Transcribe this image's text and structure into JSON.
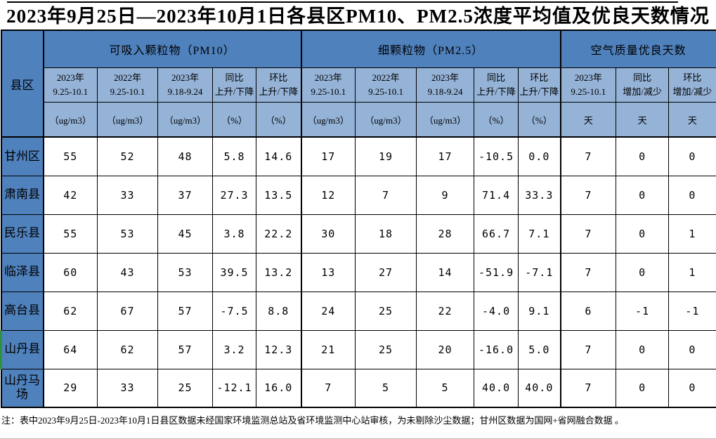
{
  "title": "2023年9月25日—2023年10月1日各县区PM10、PM2.5浓度平均值及优良天数情况",
  "table": {
    "corner_header": "县区",
    "groups": [
      {
        "label": "可吸入颗粒物（PM10）",
        "cols": 5
      },
      {
        "label": "细颗粒物（PM2.5）",
        "cols": 5
      },
      {
        "label": "空气质量优良天数",
        "cols": 3
      }
    ],
    "sub_headers": [
      "2023年\n9.25-10.1",
      "2022年\n9.25-10.1",
      "2023年\n9.18-9.24",
      "同比\n上升/下降",
      "环比\n上升/下降",
      "2023年\n9.25-10.1",
      "2022年\n9.25-10.1",
      "2023年\n9.18-9.24",
      "同比\n上升/下降",
      "环比\n上升/下降",
      "2023年\n9.25-10.1",
      "同比\n增加/减少",
      "环比\n增加/减少"
    ],
    "units": [
      "（ug/m3）",
      "（ug/m3）",
      "（ug/m3）",
      "（%）",
      "（%）",
      "（ug/m3）",
      "（ug/m3）",
      "（ug/m3）",
      "（%）",
      "（%）",
      "天",
      "天",
      "天"
    ],
    "rows": [
      {
        "name": "甘州区",
        "green_marker": false,
        "values": [
          "55",
          "52",
          "48",
          "5.8",
          "14.6",
          "17",
          "19",
          "17",
          "-10.5",
          "0.0",
          "7",
          "0",
          "0"
        ]
      },
      {
        "name": "肃南县",
        "green_marker": false,
        "values": [
          "42",
          "33",
          "37",
          "27.3",
          "13.5",
          "12",
          "7",
          "9",
          "71.4",
          "33.3",
          "7",
          "0",
          "0"
        ]
      },
      {
        "name": "民乐县",
        "green_marker": false,
        "values": [
          "55",
          "53",
          "45",
          "3.8",
          "22.2",
          "30",
          "18",
          "28",
          "66.7",
          "7.1",
          "7",
          "0",
          "1"
        ]
      },
      {
        "name": "临泽县",
        "green_marker": false,
        "values": [
          "60",
          "43",
          "53",
          "39.5",
          "13.2",
          "13",
          "27",
          "14",
          "-51.9",
          "-7.1",
          "7",
          "0",
          "1"
        ]
      },
      {
        "name": "高台县",
        "green_marker": false,
        "values": [
          "62",
          "67",
          "57",
          "-7.5",
          "8.8",
          "24",
          "25",
          "22",
          "-4.0",
          "9.1",
          "6",
          "-1",
          "-1"
        ]
      },
      {
        "name": "山丹县",
        "green_marker": true,
        "values": [
          "64",
          "62",
          "57",
          "3.2",
          "12.3",
          "21",
          "25",
          "20",
          "-16.0",
          "5.0",
          "7",
          "0",
          "0"
        ]
      },
      {
        "name": "山丹马场",
        "green_marker": false,
        "values": [
          "29",
          "33",
          "25",
          "-12.1",
          "16.0",
          "7",
          "5",
          "5",
          "40.0",
          "40.0",
          "7",
          "0",
          "0"
        ]
      }
    ]
  },
  "note": "注：表中2023年9月25日-2023年10月1日县区数据未经国家环境监测总站及省环境监测中心站审核，为未剔除沙尘数据；甘州区数据为国网+省网融合数据 。",
  "colors": {
    "header_blue": "#4f81bd",
    "subheader_blue": "#95b3d7",
    "grid_border": "#000000",
    "green_marker": "#2e9140"
  }
}
